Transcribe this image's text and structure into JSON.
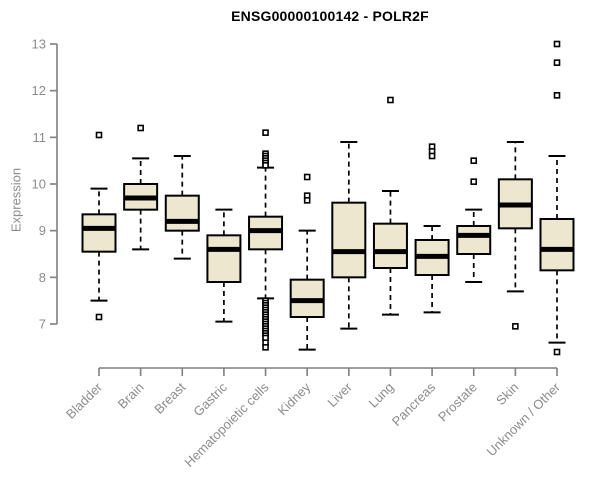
{
  "chart_data": {
    "type": "boxplot",
    "title": "ENSG00000100142 - POLR2F",
    "ylabel": "Expression",
    "xlabel": "",
    "ylim": [
      6.2,
      13.2
    ],
    "yticks": [
      7,
      8,
      9,
      10,
      11,
      12,
      13
    ],
    "grid": false,
    "legend": "none",
    "categories": [
      "Bladder",
      "Brain",
      "Breast",
      "Gastric",
      "Hematopoietic cells",
      "Kidney",
      "Liver",
      "Lung",
      "Pancreas",
      "Prostate",
      "Skin",
      "Unknown / Other"
    ],
    "boxes": [
      {
        "category": "Bladder",
        "whisker_low": 7.5,
        "q1": 8.55,
        "median": 9.05,
        "q3": 9.35,
        "whisker_high": 9.9,
        "outliers": [
          11.05,
          7.15
        ]
      },
      {
        "category": "Brain",
        "whisker_low": 8.6,
        "q1": 9.45,
        "median": 9.7,
        "q3": 10.0,
        "whisker_high": 10.55,
        "outliers": [
          11.2
        ]
      },
      {
        "category": "Breast",
        "whisker_low": 8.4,
        "q1": 9.0,
        "median": 9.2,
        "q3": 9.75,
        "whisker_high": 10.6,
        "outliers": []
      },
      {
        "category": "Gastric",
        "whisker_low": 7.05,
        "q1": 7.9,
        "median": 8.6,
        "q3": 8.9,
        "whisker_high": 9.45,
        "outliers": []
      },
      {
        "category": "Hematopoietic cells",
        "whisker_low": 7.55,
        "q1": 8.6,
        "median": 9.0,
        "q3": 9.3,
        "whisker_high": 10.35,
        "outliers": [
          11.1,
          10.65,
          10.6,
          10.55,
          10.5,
          10.45,
          10.4,
          7.5,
          7.45,
          7.4,
          7.35,
          7.3,
          7.25,
          7.2,
          7.15,
          7.1,
          7.05,
          7.0,
          6.95,
          6.9,
          6.85,
          6.8,
          6.75,
          6.7,
          6.6,
          6.5
        ]
      },
      {
        "category": "Kidney",
        "whisker_low": 6.45,
        "q1": 7.15,
        "median": 7.5,
        "q3": 7.95,
        "whisker_high": 9.0,
        "outliers": [
          10.15,
          9.75,
          9.65
        ]
      },
      {
        "category": "Liver",
        "whisker_low": 6.9,
        "q1": 8.0,
        "median": 8.55,
        "q3": 9.6,
        "whisker_high": 10.9,
        "outliers": []
      },
      {
        "category": "Lung",
        "whisker_low": 7.2,
        "q1": 8.2,
        "median": 8.55,
        "q3": 9.15,
        "whisker_high": 9.85,
        "outliers": [
          11.8
        ]
      },
      {
        "category": "Pancreas",
        "whisker_low": 7.25,
        "q1": 8.05,
        "median": 8.45,
        "q3": 8.8,
        "whisker_high": 9.1,
        "outliers": [
          10.8,
          10.7,
          10.6
        ]
      },
      {
        "category": "Prostate",
        "whisker_low": 7.9,
        "q1": 8.5,
        "median": 8.9,
        "q3": 9.1,
        "whisker_high": 9.45,
        "outliers": [
          10.5,
          10.05
        ]
      },
      {
        "category": "Skin",
        "whisker_low": 7.7,
        "q1": 9.05,
        "median": 9.55,
        "q3": 10.1,
        "whisker_high": 10.9,
        "outliers": [
          6.95
        ]
      },
      {
        "category": "Unknown / Other",
        "whisker_low": 6.6,
        "q1": 8.15,
        "median": 8.6,
        "q3": 9.25,
        "whisker_high": 10.6,
        "outliers": [
          13.0,
          12.6,
          11.9,
          6.4
        ]
      }
    ],
    "style": {
      "box_fill": "#ECE7CE",
      "box_border": "#000000",
      "median_color": "#000000",
      "whisker_color": "#000000",
      "axis_color": "#7f7f7f",
      "tick_label_color": "#8c8c8c",
      "title_color": "#000000",
      "background": "#ffffff"
    }
  }
}
